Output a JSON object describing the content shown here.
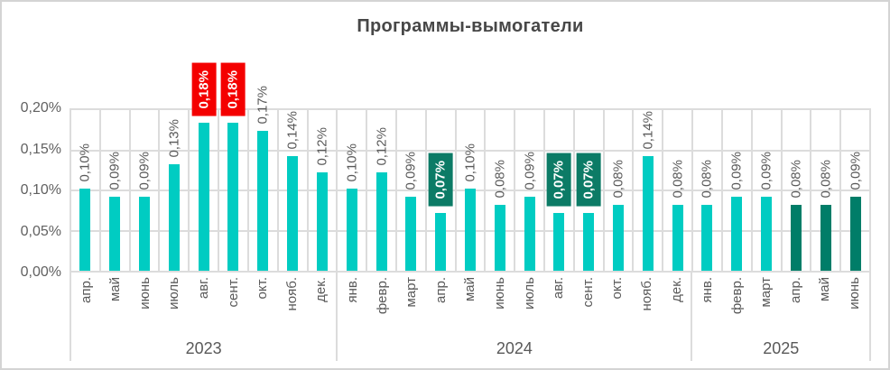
{
  "title": "Программы-вымогатели",
  "colors": {
    "bar_teal": "#00CCC2",
    "bar_dark_green": "#007D68",
    "highlight_red": "#F40000",
    "highlight_green": "#0C7B66",
    "gridline": "#DCDCDC",
    "label_text": "#595959",
    "title_text": "#474747",
    "highlight_label_text": "#FFFFFF"
  },
  "chart_data": {
    "type": "bar",
    "title": "Программы-вымогатели",
    "xlabel": "",
    "ylabel": "",
    "unit": "percent",
    "ylim": [
      0,
      0.2
    ],
    "ytick_labels_top_to_bottom": [
      "0,20%",
      "0,15%",
      "0,10%",
      "0,05%",
      "0,00%"
    ],
    "grid": true,
    "legend": false,
    "year_groups": [
      {
        "year": "2023",
        "month_count": 9
      },
      {
        "year": "2024",
        "month_count": 12
      },
      {
        "year": "2025",
        "month_count": 6
      }
    ],
    "bars": [
      {
        "year": "2023",
        "month": "апр.",
        "value": 0.1,
        "label": "0,10%",
        "bar_color": "teal",
        "highlight": "none"
      },
      {
        "year": "2023",
        "month": "май",
        "value": 0.09,
        "label": "0,09%",
        "bar_color": "teal",
        "highlight": "none"
      },
      {
        "year": "2023",
        "month": "июнь",
        "value": 0.09,
        "label": "0,09%",
        "bar_color": "teal",
        "highlight": "none"
      },
      {
        "year": "2023",
        "month": "июль",
        "value": 0.13,
        "label": "0,13%",
        "bar_color": "teal",
        "highlight": "none"
      },
      {
        "year": "2023",
        "month": "авг.",
        "value": 0.18,
        "label": "0,18%",
        "bar_color": "teal",
        "highlight": "red"
      },
      {
        "year": "2023",
        "month": "сент.",
        "value": 0.18,
        "label": "0,18%",
        "bar_color": "teal",
        "highlight": "red"
      },
      {
        "year": "2023",
        "month": "окт.",
        "value": 0.17,
        "label": "0,17%",
        "bar_color": "teal",
        "highlight": "none"
      },
      {
        "year": "2023",
        "month": "нояб.",
        "value": 0.14,
        "label": "0,14%",
        "bar_color": "teal",
        "highlight": "none"
      },
      {
        "year": "2023",
        "month": "дек.",
        "value": 0.12,
        "label": "0,12%",
        "bar_color": "teal",
        "highlight": "none"
      },
      {
        "year": "2024",
        "month": "янв.",
        "value": 0.1,
        "label": "0,10%",
        "bar_color": "teal",
        "highlight": "none"
      },
      {
        "year": "2024",
        "month": "февр.",
        "value": 0.12,
        "label": "0,12%",
        "bar_color": "teal",
        "highlight": "none"
      },
      {
        "year": "2024",
        "month": "март",
        "value": 0.09,
        "label": "0,09%",
        "bar_color": "teal",
        "highlight": "none"
      },
      {
        "year": "2024",
        "month": "апр.",
        "value": 0.07,
        "label": "0,07%",
        "bar_color": "teal",
        "highlight": "green"
      },
      {
        "year": "2024",
        "month": "май",
        "value": 0.1,
        "label": "0,10%",
        "bar_color": "teal",
        "highlight": "none"
      },
      {
        "year": "2024",
        "month": "июнь",
        "value": 0.08,
        "label": "0,08%",
        "bar_color": "teal",
        "highlight": "none"
      },
      {
        "year": "2024",
        "month": "июль",
        "value": 0.09,
        "label": "0,09%",
        "bar_color": "teal",
        "highlight": "none"
      },
      {
        "year": "2024",
        "month": "авг.",
        "value": 0.07,
        "label": "0,07%",
        "bar_color": "teal",
        "highlight": "green"
      },
      {
        "year": "2024",
        "month": "сент.",
        "value": 0.07,
        "label": "0,07%",
        "bar_color": "teal",
        "highlight": "green"
      },
      {
        "year": "2024",
        "month": "окт.",
        "value": 0.08,
        "label": "0,08%",
        "bar_color": "teal",
        "highlight": "none"
      },
      {
        "year": "2024",
        "month": "нояб.",
        "value": 0.14,
        "label": "0,14%",
        "bar_color": "teal",
        "highlight": "none"
      },
      {
        "year": "2024",
        "month": "дек.",
        "value": 0.08,
        "label": "0,08%",
        "bar_color": "teal",
        "highlight": "none"
      },
      {
        "year": "2025",
        "month": "янв.",
        "value": 0.08,
        "label": "0,08%",
        "bar_color": "teal",
        "highlight": "none"
      },
      {
        "year": "2025",
        "month": "февр.",
        "value": 0.09,
        "label": "0,09%",
        "bar_color": "teal",
        "highlight": "none"
      },
      {
        "year": "2025",
        "month": "март",
        "value": 0.09,
        "label": "0,09%",
        "bar_color": "teal",
        "highlight": "none"
      },
      {
        "year": "2025",
        "month": "апр.",
        "value": 0.08,
        "label": "0,08%",
        "bar_color": "dark",
        "highlight": "none"
      },
      {
        "year": "2025",
        "month": "май",
        "value": 0.08,
        "label": "0,08%",
        "bar_color": "dark",
        "highlight": "none"
      },
      {
        "year": "2025",
        "month": "июнь",
        "value": 0.09,
        "label": "0,09%",
        "bar_color": "dark",
        "highlight": "none"
      }
    ]
  }
}
